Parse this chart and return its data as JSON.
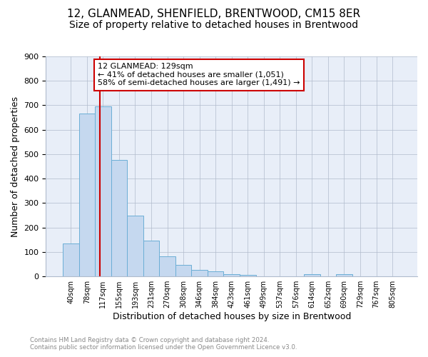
{
  "title": "12, GLANMEAD, SHENFIELD, BRENTWOOD, CM15 8ER",
  "subtitle": "Size of property relative to detached houses in Brentwood",
  "xlabel": "Distribution of detached houses by size in Brentwood",
  "ylabel": "Number of detached properties",
  "bar_labels": [
    "40sqm",
    "78sqm",
    "117sqm",
    "155sqm",
    "193sqm",
    "231sqm",
    "270sqm",
    "308sqm",
    "346sqm",
    "384sqm",
    "423sqm",
    "461sqm",
    "499sqm",
    "537sqm",
    "576sqm",
    "614sqm",
    "652sqm",
    "690sqm",
    "729sqm",
    "767sqm",
    "805sqm"
  ],
  "bar_heights": [
    135,
    665,
    695,
    478,
    248,
    148,
    82,
    48,
    27,
    21,
    10,
    7,
    0,
    0,
    0,
    8,
    0,
    8,
    0,
    0,
    0
  ],
  "bar_color": "#c5d8ef",
  "bar_edge_color": "#6baed6",
  "annotation_text": "12 GLANMEAD: 129sqm\n← 41% of detached houses are smaller (1,051)\n58% of semi-detached houses are larger (1,491) →",
  "annotation_box_color": "#ffffff",
  "annotation_border_color": "#cc0000",
  "vline_color": "#cc0000",
  "ylim": [
    0,
    900
  ],
  "yticks": [
    0,
    100,
    200,
    300,
    400,
    500,
    600,
    700,
    800,
    900
  ],
  "plot_bg_color": "#e8eef8",
  "footer_text1": "Contains HM Land Registry data © Crown copyright and database right 2024.",
  "footer_text2": "Contains public sector information licensed under the Open Government Licence v3.0.",
  "title_fontsize": 11,
  "subtitle_fontsize": 10,
  "xlabel_fontsize": 9,
  "ylabel_fontsize": 9
}
